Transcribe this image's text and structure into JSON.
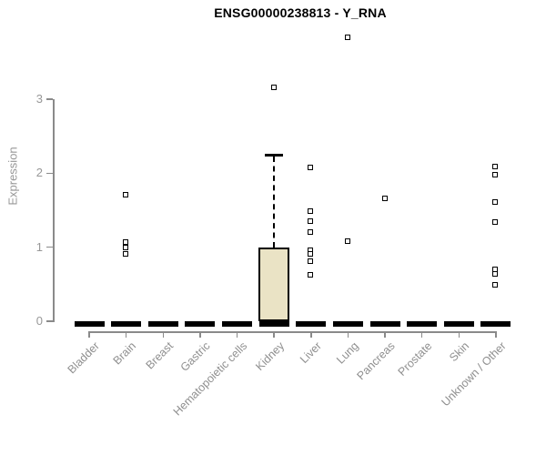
{
  "chart_data": {
    "type": "boxplot",
    "title": "ENSG00000238813 - Y_RNA",
    "ylabel": "Expression",
    "xlabel": "",
    "yticks": [
      0,
      1,
      2,
      3
    ],
    "ylim": [
      0,
      3.9
    ],
    "grid": false,
    "legend": false,
    "colors": {
      "box_fill": "#eae3c5",
      "box_border": "#000000",
      "median": "#000000",
      "whisker": "#000000",
      "outlier_fill": "#ffffff",
      "outlier_border": "#000000",
      "axis": "#8a8a8a",
      "tick_text": "#979797",
      "category_text": "#8f8f8f",
      "title_text": "#000000"
    },
    "categories": [
      "Bladder",
      "Brain",
      "Breast",
      "Gastric",
      "Hematopoietic cells",
      "Kidney",
      "Liver",
      "Lung",
      "Pancreas",
      "Prostate",
      "Skin",
      "Unknown / Other"
    ],
    "boxes": [
      {
        "category": "Bladder",
        "q1": 0,
        "median": 0,
        "q3": 0,
        "whisker_low": 0,
        "whisker_high": 0,
        "outliers": []
      },
      {
        "category": "Brain",
        "q1": 0,
        "median": 0,
        "q3": 0,
        "whisker_low": 0,
        "whisker_high": 0,
        "outliers": [
          1.7,
          1.07,
          0.99,
          0.91
        ]
      },
      {
        "category": "Breast",
        "q1": 0,
        "median": 0,
        "q3": 0,
        "whisker_low": 0,
        "whisker_high": 0,
        "outliers": []
      },
      {
        "category": "Gastric",
        "q1": 0,
        "median": 0,
        "q3": 0,
        "whisker_low": 0,
        "whisker_high": 0,
        "outliers": []
      },
      {
        "category": "Hematopoietic cells",
        "q1": 0,
        "median": 0,
        "q3": 0,
        "whisker_low": 0,
        "whisker_high": 0,
        "outliers": []
      },
      {
        "category": "Kidney",
        "q1": 0,
        "median": 0,
        "q3": 1.0,
        "whisker_low": 0,
        "whisker_high": 2.26,
        "outliers": [
          3.15
        ]
      },
      {
        "category": "Liver",
        "q1": 0,
        "median": 0,
        "q3": 0,
        "whisker_low": 0,
        "whisker_high": 0,
        "outliers": [
          2.07,
          1.48,
          1.35,
          1.2,
          0.95,
          0.9,
          0.8,
          0.62
        ]
      },
      {
        "category": "Lung",
        "q1": 0,
        "median": 0,
        "q3": 0,
        "whisker_low": 0,
        "whisker_high": 0,
        "outliers": [
          3.83,
          1.08
        ]
      },
      {
        "category": "Pancreas",
        "q1": 0,
        "median": 0,
        "q3": 0,
        "whisker_low": 0,
        "whisker_high": 0,
        "outliers": [
          1.66
        ]
      },
      {
        "category": "Prostate",
        "q1": 0,
        "median": 0,
        "q3": 0,
        "whisker_low": 0,
        "whisker_high": 0,
        "outliers": []
      },
      {
        "category": "Skin",
        "q1": 0,
        "median": 0,
        "q3": 0,
        "whisker_low": 0,
        "whisker_high": 0,
        "outliers": []
      },
      {
        "category": "Unknown / Other",
        "q1": 0,
        "median": 0,
        "q3": 0,
        "whisker_low": 0,
        "whisker_high": 0,
        "outliers": [
          2.08,
          1.98,
          1.6,
          1.33,
          0.7,
          0.63,
          0.48
        ]
      }
    ]
  }
}
